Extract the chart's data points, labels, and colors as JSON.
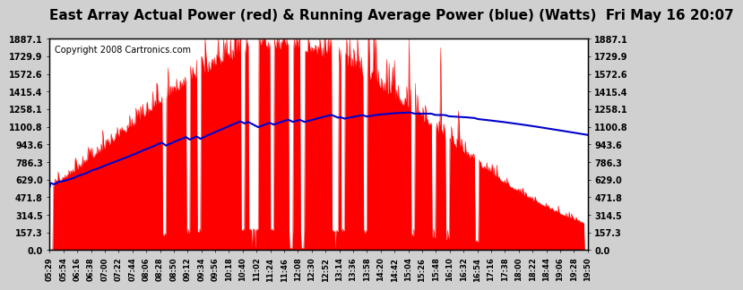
{
  "title": "East Array Actual Power (red) & Running Average Power (blue) (Watts)  Fri May 16 20:07",
  "copyright": "Copyright 2008 Cartronics.com",
  "yticks": [
    0.0,
    157.3,
    314.5,
    471.8,
    629.0,
    786.3,
    943.6,
    1100.8,
    1258.1,
    1415.4,
    1572.6,
    1729.9,
    1887.1
  ],
  "xtick_labels": [
    "05:29",
    "05:54",
    "06:16",
    "06:38",
    "07:00",
    "07:22",
    "07:44",
    "08:06",
    "08:28",
    "08:50",
    "09:12",
    "09:34",
    "09:56",
    "10:18",
    "10:40",
    "11:02",
    "11:24",
    "11:46",
    "12:08",
    "12:30",
    "12:52",
    "13:14",
    "13:36",
    "13:58",
    "14:20",
    "14:42",
    "15:04",
    "15:26",
    "15:48",
    "16:10",
    "16:32",
    "16:54",
    "17:16",
    "17:38",
    "18:00",
    "18:22",
    "18:44",
    "19:06",
    "19:28",
    "19:50"
  ],
  "ymax": 1887.1,
  "ymin": 0.0,
  "bg_color": "#d0d0d0",
  "plot_bg": "#ffffff",
  "red_color": "#ff0000",
  "blue_color": "#0000cc",
  "grid_color": "#ffffff",
  "title_fontsize": 11,
  "copyright_fontsize": 7
}
